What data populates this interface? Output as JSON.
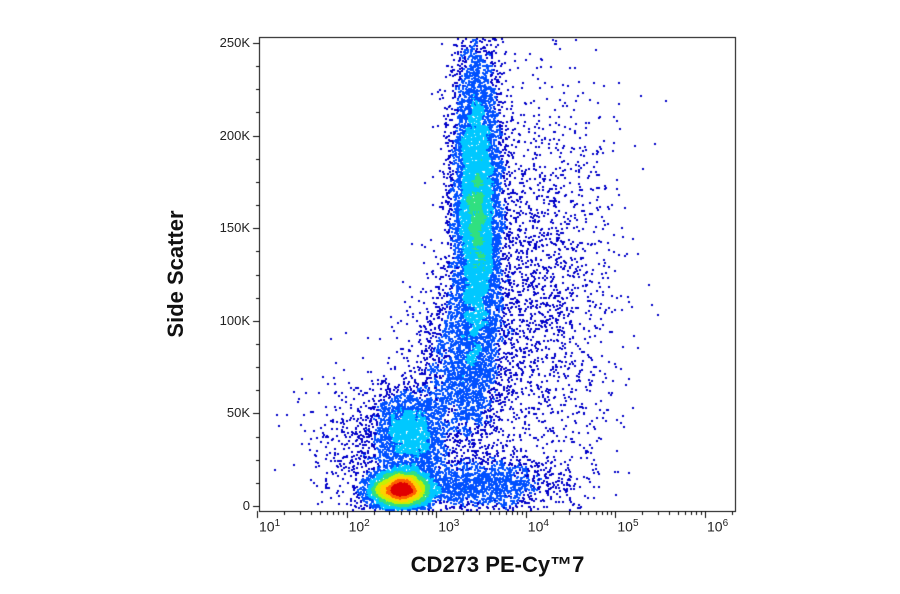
{
  "chart_data": {
    "type": "scatter",
    "subtype": "flow-cytometry density dot plot",
    "xlabel": "CD273 PE-Cy™7",
    "ylabel": "Side Scatter",
    "x_scale": "log",
    "xlim": [
      10,
      2000000
    ],
    "ylim": [
      0,
      253000
    ],
    "x_ticks": [
      {
        "base": "10",
        "exp": "1",
        "value": 10
      },
      {
        "base": "10",
        "exp": "2",
        "value": 100
      },
      {
        "base": "10",
        "exp": "3",
        "value": 1000
      },
      {
        "base": "10",
        "exp": "4",
        "value": 10000
      },
      {
        "base": "10",
        "exp": "5",
        "value": 100000
      },
      {
        "base": "10",
        "exp": "6",
        "value": 1000000
      }
    ],
    "y_ticks": [
      {
        "label": "0",
        "value": 0
      },
      {
        "label": "50K",
        "value": 50000
      },
      {
        "label": "100K",
        "value": 100000
      },
      {
        "label": "150K",
        "value": 150000
      },
      {
        "label": "200K",
        "value": 200000
      },
      {
        "label": "250K",
        "value": 250000
      }
    ],
    "colormap": [
      "#0000c8",
      "#0050ff",
      "#00c8ff",
      "#30e080",
      "#c8f000",
      "#ffd000",
      "#ff6000",
      "#e00000"
    ],
    "populations": [
      {
        "x_center": 400,
        "x_log_sd": 0.17,
        "y_center": 9000,
        "y_sd": 5000,
        "events": 5200
      },
      {
        "x_center": 500,
        "x_log_sd": 0.2,
        "y_center": 40000,
        "y_sd": 12000,
        "events": 2200
      },
      {
        "x_center": 2800,
        "x_log_sd": 0.14,
        "y_center": 160000,
        "y_sd": 45000,
        "events": 8000
      },
      {
        "x_center": 1800,
        "x_log_sd": 0.25,
        "y_center": 75000,
        "y_sd": 25000,
        "events": 2000
      },
      {
        "x_center": 12000,
        "x_log_sd": 0.45,
        "y_center": 110000,
        "y_sd": 60000,
        "events": 2200
      },
      {
        "x_center": 3000,
        "x_log_sd": 0.45,
        "y_center": 12000,
        "y_sd": 7000,
        "events": 1500
      },
      {
        "x_center": 200,
        "x_log_sd": 0.35,
        "y_center": 30000,
        "y_sd": 20000,
        "events": 700
      }
    ]
  }
}
